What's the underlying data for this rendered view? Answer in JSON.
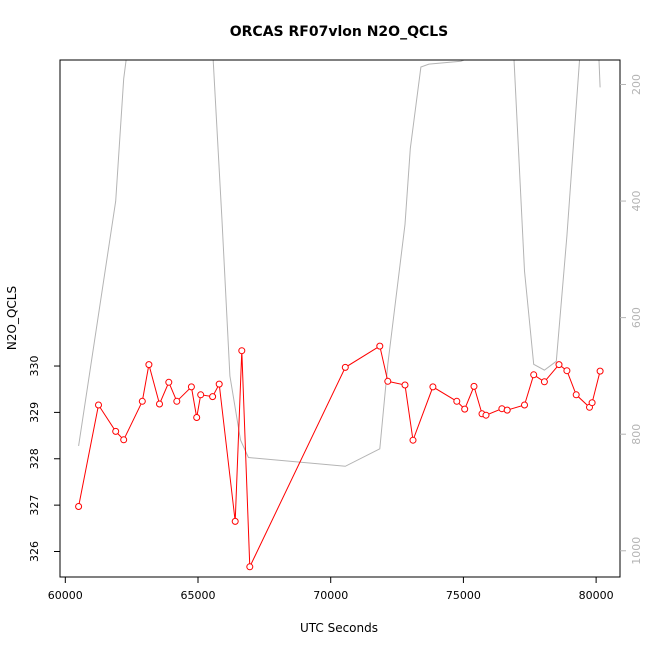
{
  "chart_data": {
    "type": "line",
    "title": "ORCAS RF07vlon N2O_QCLS",
    "xlabel": "UTC Seconds",
    "ylabel": "N2O_QCLS",
    "xlim": [
      59800,
      80900
    ],
    "ylim": [
      325.45,
      336.6
    ],
    "y2lim": [
      1045,
      158
    ],
    "x_ticks": [
      "60000",
      "65000",
      "70000",
      "75000",
      "80000"
    ],
    "y_ticks": [
      "326",
      "327",
      "328",
      "329",
      "330"
    ],
    "y2_ticks": [
      "200",
      "400",
      "600",
      "800",
      "1000"
    ],
    "grid": false,
    "colors": {
      "primary": "#ff0000",
      "secondary": "#b4b4b4",
      "axis": "#000000"
    },
    "series": [
      {
        "role": "primary",
        "x": [
          60500,
          61250,
          61900,
          62200,
          62900,
          63150,
          63550,
          63900,
          64200,
          64750,
          64950,
          65100,
          65550,
          65800,
          66400,
          66650,
          66950,
          70550,
          71850,
          72150,
          72800,
          73100,
          73850,
          74750,
          75050,
          75400,
          75700,
          75850,
          76450,
          76650,
          77300,
          77650,
          78050,
          78600,
          78900,
          79250,
          79750,
          79850,
          80150
        ],
        "y": [
          326.97,
          329.16,
          328.59,
          328.41,
          329.24,
          330.03,
          329.18,
          329.65,
          329.24,
          329.55,
          328.89,
          329.38,
          329.34,
          329.61,
          326.65,
          330.33,
          325.67,
          329.97,
          330.43,
          329.67,
          329.59,
          328.4,
          329.55,
          329.24,
          329.07,
          329.56,
          328.97,
          328.94,
          329.08,
          329.05,
          329.16,
          329.81,
          329.66,
          330.03,
          329.9,
          329.38,
          329.11,
          329.21,
          329.89
        ]
      },
      {
        "role": "secondary",
        "x": [
          60500,
          61900,
          62200,
          62400,
          62600,
          65400,
          65550,
          65900,
          66200,
          66600,
          66900,
          70550,
          71850,
          72150,
          72800,
          73000,
          73400,
          73700,
          74900,
          75200,
          76500,
          76900,
          77300,
          77650,
          78050,
          78500,
          78900,
          79500,
          79700,
          79900,
          80100,
          80150
        ],
        "y": [
          820,
          400,
          190,
          120,
          40,
          40,
          140,
          430,
          700,
          810,
          840,
          855,
          825,
          680,
          440,
          310,
          170,
          165,
          160,
          155,
          150,
          150,
          520,
          680,
          690,
          675,
          460,
          80,
          40,
          60,
          150,
          205
        ]
      }
    ]
  }
}
